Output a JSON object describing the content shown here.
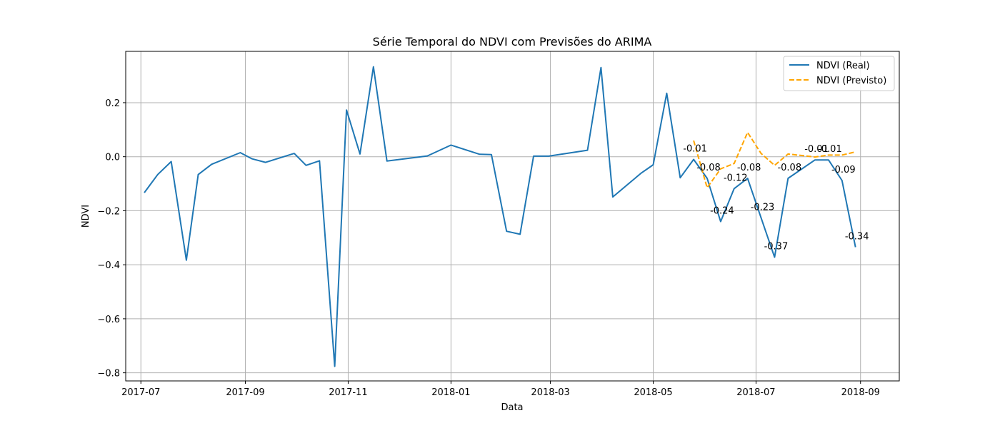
{
  "chart_data": {
    "type": "line",
    "title": "Série Temporal do NDVI com Previsões do ARIMA",
    "xlabel": "Data",
    "ylabel": "NDVI",
    "x_axis_type": "date",
    "xlim": [
      "2017-06-22",
      "2018-09-24"
    ],
    "ylim": [
      -0.83,
      0.39
    ],
    "x_ticks": [
      "2017-07-01",
      "2017-09-01",
      "2017-11-01",
      "2018-01-01",
      "2018-03-01",
      "2018-05-01",
      "2018-07-01",
      "2018-09-01"
    ],
    "x_tick_labels": [
      "2017-07",
      "2017-09",
      "2017-11",
      "2018-01",
      "2018-03",
      "2018-05",
      "2018-07",
      "2018-09"
    ],
    "y_ticks": [
      0.2,
      0.0,
      -0.2,
      -0.4,
      -0.6,
      -0.8
    ],
    "y_tick_labels": [
      "0.2",
      "0.0",
      "−0.2",
      "−0.4",
      "−0.6",
      "−0.8"
    ],
    "grid": true,
    "legend_position": "top-right",
    "series": [
      {
        "name": "NDVI (Real)",
        "color": "#1f77b4",
        "dash": "solid",
        "points": [
          {
            "x": "2017-07-03",
            "y": -0.133
          },
          {
            "x": "2017-07-11",
            "y": -0.066
          },
          {
            "x": "2017-07-19",
            "y": -0.018
          },
          {
            "x": "2017-07-28",
            "y": -0.383
          },
          {
            "x": "2017-08-04",
            "y": -0.066
          },
          {
            "x": "2017-08-12",
            "y": -0.028
          },
          {
            "x": "2017-08-29",
            "y": 0.015
          },
          {
            "x": "2017-09-05",
            "y": -0.008
          },
          {
            "x": "2017-09-13",
            "y": -0.021
          },
          {
            "x": "2017-09-30",
            "y": 0.012
          },
          {
            "x": "2017-10-07",
            "y": -0.032
          },
          {
            "x": "2017-10-15",
            "y": -0.015
          },
          {
            "x": "2017-10-24",
            "y": -0.776
          },
          {
            "x": "2017-10-31",
            "y": 0.173
          },
          {
            "x": "2017-11-08",
            "y": 0.01
          },
          {
            "x": "2017-11-16",
            "y": 0.333
          },
          {
            "x": "2017-11-24",
            "y": -0.016
          },
          {
            "x": "2017-12-18",
            "y": 0.003
          },
          {
            "x": "2018-01-01",
            "y": 0.043
          },
          {
            "x": "2018-01-18",
            "y": 0.009
          },
          {
            "x": "2018-01-25",
            "y": 0.008
          },
          {
            "x": "2018-02-03",
            "y": -0.276
          },
          {
            "x": "2018-02-11",
            "y": -0.287
          },
          {
            "x": "2018-02-19",
            "y": 0.002
          },
          {
            "x": "2018-02-28",
            "y": 0.002
          },
          {
            "x": "2018-03-23",
            "y": 0.024
          },
          {
            "x": "2018-03-31",
            "y": 0.33
          },
          {
            "x": "2018-04-07",
            "y": -0.149
          },
          {
            "x": "2018-04-24",
            "y": -0.06
          },
          {
            "x": "2018-05-01",
            "y": -0.03
          },
          {
            "x": "2018-05-09",
            "y": 0.235
          },
          {
            "x": "2018-05-17",
            "y": -0.078
          },
          {
            "x": "2018-05-25",
            "y": -0.01
          },
          {
            "x": "2018-06-02",
            "y": -0.08
          },
          {
            "x": "2018-06-10",
            "y": -0.24
          },
          {
            "x": "2018-06-18",
            "y": -0.118
          },
          {
            "x": "2018-06-26",
            "y": -0.08
          },
          {
            "x": "2018-07-04",
            "y": -0.226
          },
          {
            "x": "2018-07-12",
            "y": -0.372
          },
          {
            "x": "2018-07-20",
            "y": -0.08
          },
          {
            "x": "2018-08-05",
            "y": -0.012
          },
          {
            "x": "2018-08-13",
            "y": -0.012
          },
          {
            "x": "2018-08-21",
            "y": -0.088
          },
          {
            "x": "2018-08-29",
            "y": -0.335
          }
        ]
      },
      {
        "name": "NDVI (Previsto)",
        "color": "#ffa500",
        "dash": "dashed",
        "points": [
          {
            "x": "2018-05-25",
            "y": 0.06
          },
          {
            "x": "2018-06-02",
            "y": -0.115
          },
          {
            "x": "2018-06-10",
            "y": -0.045
          },
          {
            "x": "2018-06-18",
            "y": -0.025
          },
          {
            "x": "2018-06-26",
            "y": 0.09
          },
          {
            "x": "2018-07-04",
            "y": 0.012
          },
          {
            "x": "2018-07-12",
            "y": -0.032
          },
          {
            "x": "2018-07-20",
            "y": 0.01
          },
          {
            "x": "2018-08-05",
            "y": -0.001
          },
          {
            "x": "2018-08-13",
            "y": 0.006
          },
          {
            "x": "2018-08-21",
            "y": 0.006
          },
          {
            "x": "2018-08-29",
            "y": 0.018
          }
        ]
      }
    ],
    "annotations": [
      {
        "text": "-0.01",
        "x": "2018-05-25",
        "y": -0.01
      },
      {
        "text": "-0.08",
        "x": "2018-06-02",
        "y": -0.08
      },
      {
        "text": "-0.24",
        "x": "2018-06-10",
        "y": -0.24
      },
      {
        "text": "-0.12",
        "x": "2018-06-18",
        "y": -0.118
      },
      {
        "text": "-0.08",
        "x": "2018-06-26",
        "y": -0.08
      },
      {
        "text": "-0.23",
        "x": "2018-07-04",
        "y": -0.226
      },
      {
        "text": "-0.37",
        "x": "2018-07-12",
        "y": -0.372
      },
      {
        "text": "-0.08",
        "x": "2018-07-20",
        "y": -0.08
      },
      {
        "text": "-0.01",
        "x": "2018-08-05",
        "y": -0.012
      },
      {
        "text": "-0.01",
        "x": "2018-08-13",
        "y": -0.012
      },
      {
        "text": "-0.09",
        "x": "2018-08-21",
        "y": -0.088
      },
      {
        "text": "-0.34",
        "x": "2018-08-29",
        "y": -0.335
      }
    ]
  }
}
